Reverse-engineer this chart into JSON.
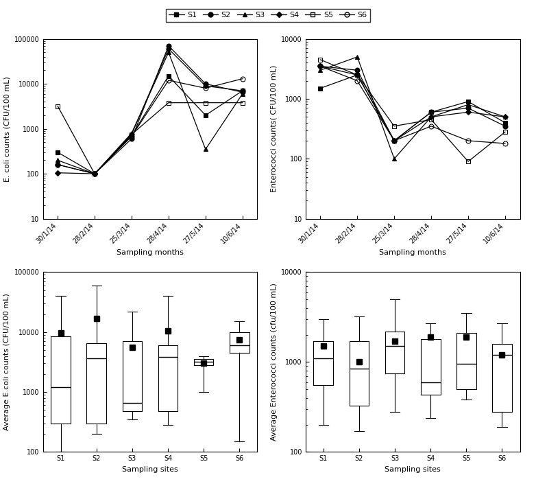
{
  "dates": [
    "30/1/14",
    "28/2/14",
    "25/3/14",
    "28/4/14",
    "27/5/14",
    "10/6/14"
  ],
  "ecoli": {
    "S1": [
      300,
      100,
      700,
      15000,
      2000,
      7000
    ],
    "S2": [
      160,
      100,
      600,
      70000,
      10000,
      6500
    ],
    "S3": [
      200,
      100,
      800,
      50000,
      350,
      6000
    ],
    "S4": [
      105,
      100,
      750,
      60000,
      9000,
      7000
    ],
    "S5": [
      3200,
      100,
      750,
      3800,
      3800,
      3800
    ],
    "S6": [
      160,
      100,
      680,
      12000,
      8000,
      13000
    ]
  },
  "enterococci": {
    "S1": [
      1500,
      2500,
      200,
      600,
      900,
      400
    ],
    "S2": [
      3500,
      3000,
      200,
      600,
      700,
      350
    ],
    "S3": [
      3000,
      5000,
      100,
      500,
      800,
      500
    ],
    "S4": [
      3500,
      2500,
      200,
      500,
      600,
      500
    ],
    "S5": [
      4500,
      2500,
      350,
      450,
      90,
      280
    ],
    "S6": [
      3500,
      2000,
      200,
      350,
      200,
      180
    ]
  },
  "ecoli_box": {
    "S1": {
      "whislo": 100,
      "q1": 300,
      "med": 1200,
      "q3": 8500,
      "whishi": 40000,
      "mean": 9800
    },
    "S2": {
      "whislo": 200,
      "q1": 300,
      "med": 3700,
      "q3": 6500,
      "whishi": 60000,
      "mean": 17000
    },
    "S3": {
      "whislo": 350,
      "q1": 480,
      "med": 650,
      "q3": 7000,
      "whishi": 22000,
      "mean": 5500
    },
    "S4": {
      "whislo": 280,
      "q1": 480,
      "med": 3800,
      "q3": 6000,
      "whishi": 40000,
      "mean": 10500
    },
    "S5": {
      "whislo": 1000,
      "q1": 2800,
      "med": 3200,
      "q3": 3600,
      "whishi": 4000,
      "mean": 3000
    },
    "S6": {
      "whislo": 150,
      "q1": 4500,
      "med": 6000,
      "q3": 10000,
      "whishi": 15000,
      "mean": 7500
    }
  },
  "entero_box": {
    "S1": {
      "whislo": 200,
      "q1": 550,
      "med": 1100,
      "q3": 1700,
      "whishi": 3000,
      "mean": 1500
    },
    "S2": {
      "whislo": 170,
      "q1": 330,
      "med": 850,
      "q3": 1700,
      "whishi": 3200,
      "mean": 1000
    },
    "S3": {
      "whislo": 280,
      "q1": 750,
      "med": 1500,
      "q3": 2200,
      "whishi": 5000,
      "mean": 1700
    },
    "S4": {
      "whislo": 240,
      "q1": 430,
      "med": 600,
      "q3": 1800,
      "whishi": 2700,
      "mean": 1900
    },
    "S5": {
      "whislo": 380,
      "q1": 500,
      "med": 950,
      "q3": 2100,
      "whishi": 3500,
      "mean": 1900
    },
    "S6": {
      "whislo": 190,
      "q1": 280,
      "med": 1200,
      "q3": 1600,
      "whishi": 2700,
      "mean": 1200
    }
  },
  "sites": [
    "S1",
    "S2",
    "S3",
    "S4",
    "S5",
    "S6"
  ]
}
